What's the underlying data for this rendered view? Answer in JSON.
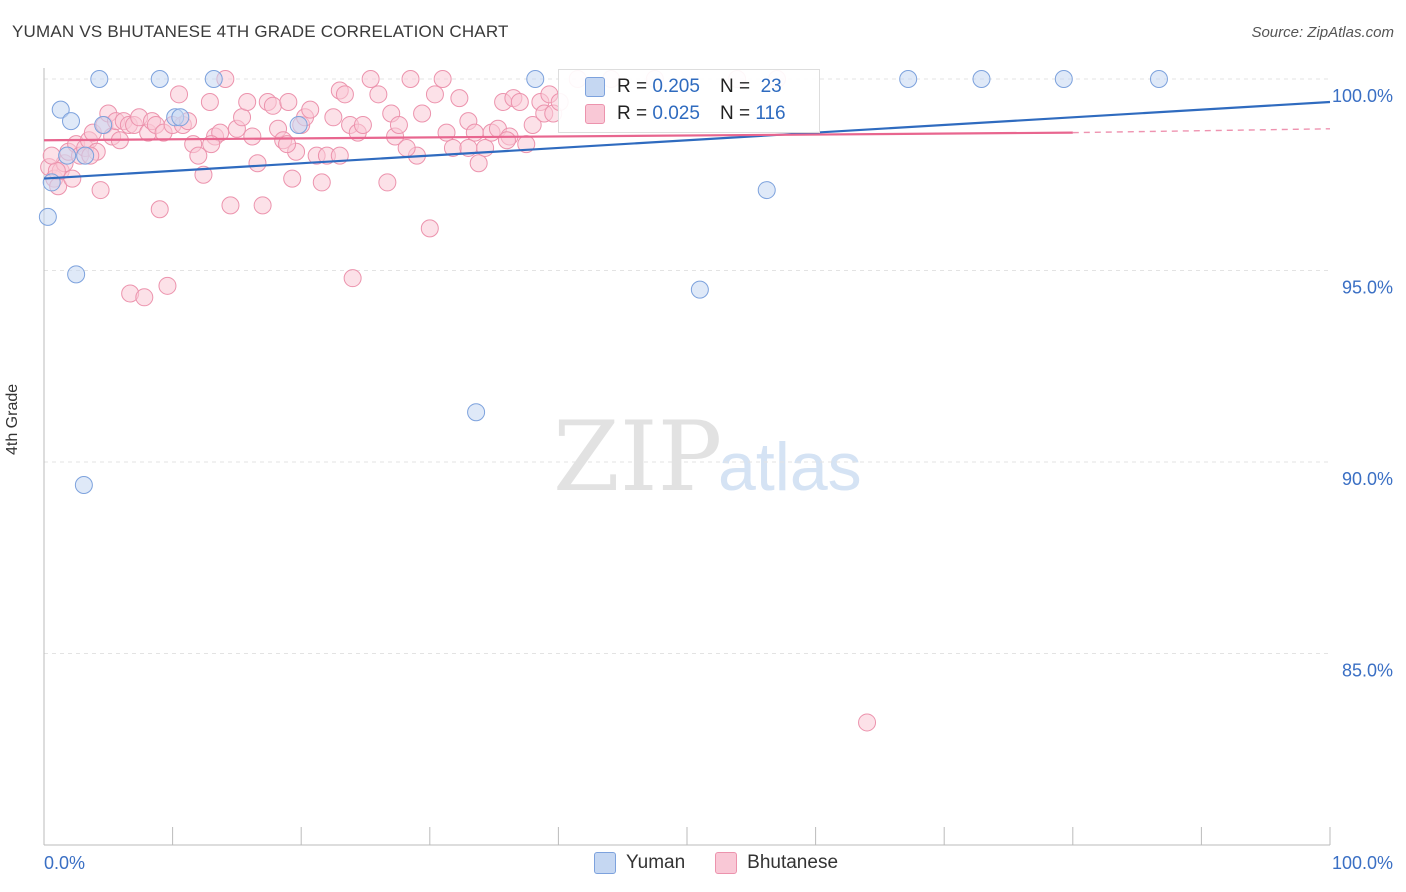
{
  "title": "YUMAN VS BHUTANESE 4TH GRADE CORRELATION CHART",
  "source": "Source: ZipAtlas.com",
  "watermark": {
    "zip": "ZIP",
    "atlas": "atlas"
  },
  "colors": {
    "blue": "#6f9de0",
    "blue_line": "#2f6bbf",
    "pink": "#f29bb5",
    "pink_line": "#e8668f",
    "axis_text": "#3a6fc4"
  },
  "chart_data": {
    "type": "scatter",
    "ylabel": "4th Grade",
    "xlim": [
      0,
      100
    ],
    "ylim": [
      80.8,
      100.8
    ],
    "x_tick_labels": [
      "0.0%",
      "100.0%"
    ],
    "y_ticks": [
      100,
      95,
      90,
      85
    ],
    "y_tick_labels": [
      "100.0%",
      "95.0%",
      "90.0%",
      "85.0%"
    ],
    "grid": true,
    "legend_position": "bottom-center",
    "series": [
      {
        "name": "Yuman",
        "color": "#6f9de0",
        "r": "0.205",
        "n": "23",
        "trend": [
          [
            0,
            97.4
          ],
          [
            100,
            99.4
          ]
        ],
        "points": [
          [
            0.3,
            96.4
          ],
          [
            1.3,
            99.2
          ],
          [
            1.8,
            98.0
          ],
          [
            2.1,
            98.9
          ],
          [
            2.5,
            94.9
          ],
          [
            3.1,
            89.4
          ],
          [
            3.2,
            98.0
          ],
          [
            4.6,
            98.8
          ],
          [
            4.3,
            100.0
          ],
          [
            9.0,
            100.0
          ],
          [
            10.2,
            99.0
          ],
          [
            10.6,
            99.0
          ],
          [
            13.2,
            100.0
          ],
          [
            19.8,
            98.8
          ],
          [
            33.6,
            91.3
          ],
          [
            38.2,
            100.0
          ],
          [
            51.0,
            94.5
          ],
          [
            56.2,
            97.1
          ],
          [
            67.2,
            100.0
          ],
          [
            72.9,
            100.0
          ],
          [
            79.3,
            100.0
          ],
          [
            86.7,
            100.0
          ],
          [
            0.6,
            97.3
          ]
        ]
      },
      {
        "name": "Bhutanese",
        "color": "#f29bb5",
        "r": "0.025",
        "n": "116",
        "trend": [
          [
            0,
            98.4
          ],
          [
            80,
            98.6
          ]
        ],
        "trend_dashed": [
          [
            80,
            98.6
          ],
          [
            100,
            98.7
          ]
        ],
        "points": [
          [
            0.4,
            97.7
          ],
          [
            0.8,
            97.4
          ],
          [
            1.1,
            97.2
          ],
          [
            1.3,
            97.6
          ],
          [
            1.6,
            97.8
          ],
          [
            1.9,
            98.1
          ],
          [
            2.2,
            97.4
          ],
          [
            2.5,
            98.3
          ],
          [
            2.8,
            98.0
          ],
          [
            3.2,
            98.2
          ],
          [
            3.5,
            98.4
          ],
          [
            3.8,
            98.6
          ],
          [
            4.1,
            98.1
          ],
          [
            4.4,
            97.1
          ],
          [
            4.7,
            98.8
          ],
          [
            5.0,
            99.1
          ],
          [
            5.3,
            98.5
          ],
          [
            5.6,
            98.9
          ],
          [
            5.9,
            98.4
          ],
          [
            6.2,
            98.9
          ],
          [
            6.6,
            98.8
          ],
          [
            6.7,
            94.4
          ],
          [
            7.0,
            98.8
          ],
          [
            7.4,
            99.0
          ],
          [
            7.8,
            94.3
          ],
          [
            8.1,
            98.6
          ],
          [
            8.4,
            98.9
          ],
          [
            8.7,
            98.8
          ],
          [
            9.0,
            96.6
          ],
          [
            9.3,
            98.6
          ],
          [
            9.6,
            94.6
          ],
          [
            10.0,
            98.8
          ],
          [
            10.5,
            99.6
          ],
          [
            10.8,
            98.8
          ],
          [
            11.2,
            98.9
          ],
          [
            11.6,
            98.3
          ],
          [
            12.0,
            98.0
          ],
          [
            12.4,
            97.5
          ],
          [
            12.9,
            99.4
          ],
          [
            13.3,
            98.5
          ],
          [
            13.7,
            98.6
          ],
          [
            14.1,
            100.0
          ],
          [
            14.5,
            96.7
          ],
          [
            15.0,
            98.7
          ],
          [
            15.4,
            99.0
          ],
          [
            15.8,
            99.4
          ],
          [
            16.2,
            98.5
          ],
          [
            16.6,
            97.8
          ],
          [
            17.0,
            96.7
          ],
          [
            17.4,
            99.4
          ],
          [
            17.8,
            99.3
          ],
          [
            18.2,
            98.7
          ],
          [
            18.6,
            98.4
          ],
          [
            19.0,
            99.4
          ],
          [
            19.3,
            97.4
          ],
          [
            19.6,
            98.1
          ],
          [
            20.0,
            98.8
          ],
          [
            20.3,
            99.0
          ],
          [
            20.7,
            99.2
          ],
          [
            21.2,
            98.0
          ],
          [
            21.6,
            97.3
          ],
          [
            22.0,
            98.0
          ],
          [
            22.5,
            99.0
          ],
          [
            23.0,
            99.7
          ],
          [
            23.4,
            99.6
          ],
          [
            23.8,
            98.8
          ],
          [
            24.0,
            94.8
          ],
          [
            24.4,
            98.6
          ],
          [
            24.8,
            98.8
          ],
          [
            25.4,
            100.0
          ],
          [
            26.0,
            99.6
          ],
          [
            26.7,
            97.3
          ],
          [
            27.0,
            99.1
          ],
          [
            27.3,
            98.5
          ],
          [
            27.6,
            98.8
          ],
          [
            28.5,
            100.0
          ],
          [
            29.0,
            98.0
          ],
          [
            29.4,
            99.1
          ],
          [
            30.0,
            96.1
          ],
          [
            30.4,
            99.6
          ],
          [
            31.0,
            100.0
          ],
          [
            31.3,
            98.6
          ],
          [
            31.8,
            98.2
          ],
          [
            32.3,
            99.5
          ],
          [
            33.0,
            98.9
          ],
          [
            33.5,
            98.6
          ],
          [
            33.8,
            97.8
          ],
          [
            34.3,
            98.2
          ],
          [
            34.8,
            98.6
          ],
          [
            35.3,
            98.7
          ],
          [
            35.7,
            99.4
          ],
          [
            36.2,
            98.5
          ],
          [
            36.5,
            99.5
          ],
          [
            37.0,
            99.4
          ],
          [
            37.5,
            98.3
          ],
          [
            38.0,
            98.8
          ],
          [
            38.6,
            99.4
          ],
          [
            38.9,
            99.1
          ],
          [
            39.3,
            99.6
          ],
          [
            39.6,
            99.1
          ],
          [
            40.1,
            99.4
          ],
          [
            41.5,
            100.0
          ],
          [
            44.1,
            100.0
          ],
          [
            47.5,
            100.0
          ],
          [
            53.9,
            100.0
          ],
          [
            57.0,
            100.0
          ],
          [
            64.0,
            83.2
          ],
          [
            1.0,
            97.6
          ],
          [
            0.6,
            98.0
          ],
          [
            3.6,
            98.0
          ],
          [
            13.0,
            98.3
          ],
          [
            18.9,
            98.3
          ],
          [
            23.0,
            98.0
          ],
          [
            28.2,
            98.2
          ],
          [
            33.0,
            98.2
          ],
          [
            36.0,
            98.4
          ]
        ]
      }
    ]
  }
}
